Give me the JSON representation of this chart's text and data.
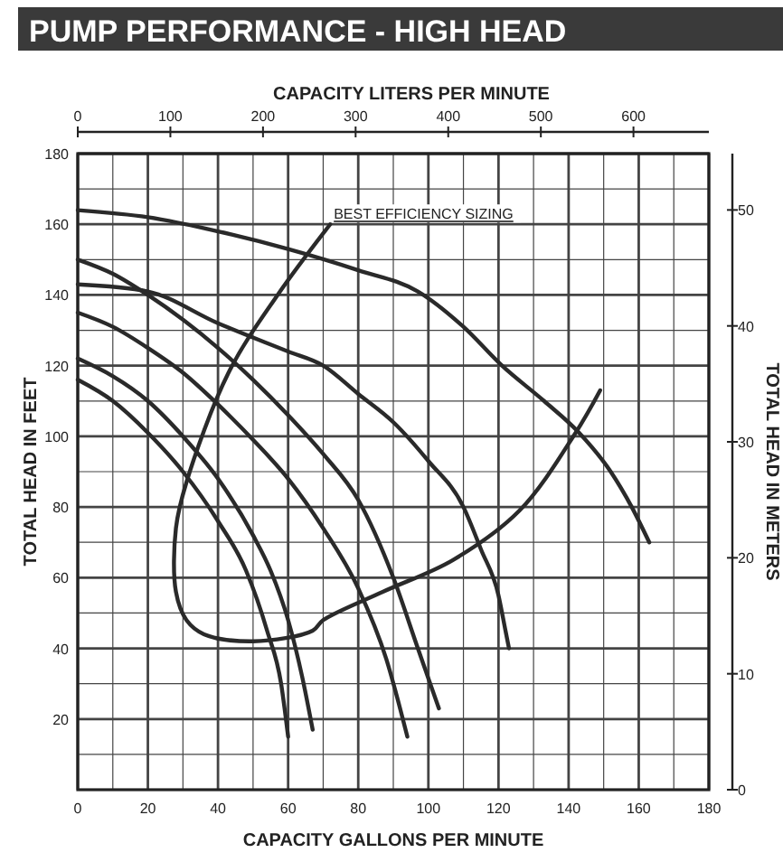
{
  "chart_data": {
    "type": "line",
    "title": "PUMP PERFORMANCE - HIGH HEAD",
    "xlabel": "CAPACITY GALLONS PER MINUTE",
    "ylabel": "TOTAL HEAD IN FEET",
    "x2label": "CAPACITY LITERS PER MINUTE",
    "y2label": "TOTAL HEAD IN METERS",
    "xlim": [
      0,
      180
    ],
    "ylim": [
      0,
      180
    ],
    "xticks": [
      0,
      {
        "value": 10,
        "label": null
      },
      20,
      {
        "value": 30,
        "label": null
      },
      40,
      {
        "value": 50,
        "label": null
      },
      60,
      {
        "value": 70,
        "label": null
      },
      80,
      {
        "value": 90,
        "label": null
      },
      100,
      {
        "value": 110,
        "label": null
      },
      120,
      {
        "value": 130,
        "label": null
      },
      140,
      {
        "value": 150,
        "label": null
      },
      160,
      {
        "value": 170,
        "label": null
      },
      180
    ],
    "yticks": [
      {
        "value": 0,
        "label": null
      },
      {
        "value": 10,
        "label": null
      },
      20,
      {
        "value": 30,
        "label": null
      },
      40,
      {
        "value": 50,
        "label": null
      },
      60,
      {
        "value": 70,
        "label": null
      },
      80,
      {
        "value": 90,
        "label": null
      },
      100,
      {
        "value": 110,
        "label": null
      },
      120,
      {
        "value": 130,
        "label": null
      },
      140,
      {
        "value": 150,
        "label": null
      },
      160,
      {
        "value": 170,
        "label": null
      },
      180
    ],
    "x2lim": [
      0,
      681.4
    ],
    "x2ticks": [
      0,
      100,
      200,
      300,
      400,
      500,
      600
    ],
    "y2lim": [
      0,
      54.86
    ],
    "y2ticks": [
      0,
      10,
      20,
      30,
      40,
      50
    ],
    "grid": true,
    "series": [
      {
        "color": "#2a2a2a",
        "x": [
          0,
          20,
          40,
          60,
          80,
          97,
          110,
          121,
          133,
          143,
          152,
          158,
          163
        ],
        "values": [
          164,
          162,
          158,
          153,
          147,
          141,
          131,
          120,
          110,
          101,
          90,
          80,
          70
        ]
      },
      {
        "color": "#2a2a2a",
        "x": [
          0,
          20,
          40,
          60,
          70,
          80,
          90,
          100,
          110,
          115,
          120,
          122,
          123
        ],
        "values": [
          143,
          141,
          132,
          124,
          120,
          112,
          104,
          93,
          80,
          68,
          55,
          45,
          40
        ]
      },
      {
        "color": "#2a2a2a",
        "x": [
          0,
          10,
          20,
          30,
          40,
          50,
          60,
          70,
          80,
          90,
          97,
          103
        ],
        "values": [
          150,
          146,
          140,
          133,
          125,
          116,
          106,
          95,
          82,
          60,
          40,
          23
        ]
      },
      {
        "color": "#2a2a2a",
        "x": [
          0,
          10,
          20,
          30,
          40,
          50,
          60,
          70,
          80,
          88,
          94
        ],
        "values": [
          135,
          131,
          125,
          118,
          109,
          99,
          88,
          74,
          57,
          37,
          15
        ]
      },
      {
        "color": "#2a2a2a",
        "x": [
          0,
          10,
          20,
          30,
          40,
          50,
          55,
          60,
          64,
          67
        ],
        "values": [
          122,
          117,
          110,
          100,
          88,
          72,
          62,
          48,
          32,
          17
        ]
      },
      {
        "color": "#2a2a2a",
        "x": [
          0,
          10,
          20,
          30,
          40,
          48,
          54,
          58,
          60
        ],
        "values": [
          116,
          110,
          101,
          90,
          76,
          62,
          45,
          30,
          15
        ]
      },
      {
        "name": "BEST EFFICIENCY SIZING",
        "color": "#2a2a2a",
        "x": [
          72,
          57,
          43,
          31,
          28,
          28,
          31,
          36,
          50,
          67,
          70,
          87,
          107,
          126,
          142,
          149
        ],
        "values": [
          160,
          140,
          118,
          87,
          74,
          56,
          48,
          44,
          42,
          45,
          48,
          56,
          65,
          79,
          101,
          113
        ]
      }
    ]
  }
}
